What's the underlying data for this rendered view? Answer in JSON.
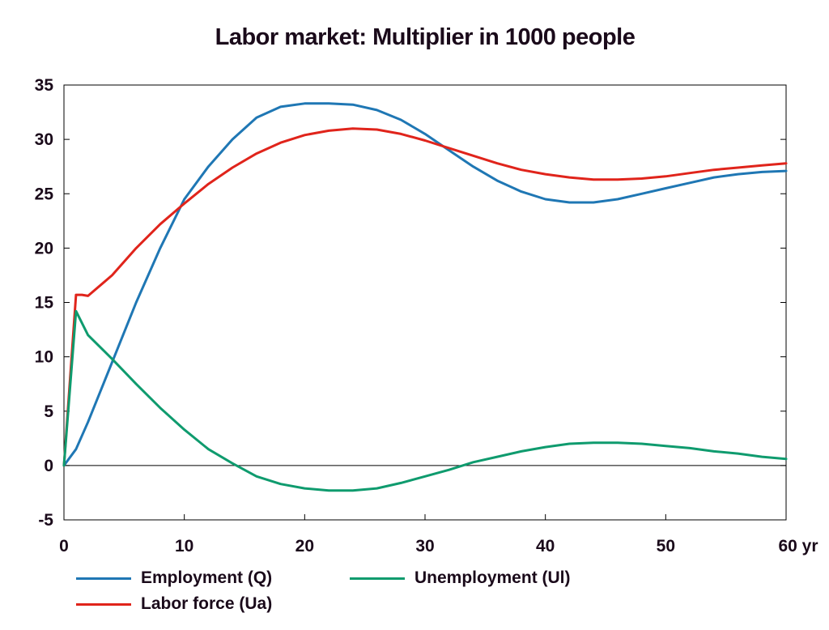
{
  "chart_data": {
    "type": "line",
    "title": "Labor market: Multiplier in 1000 people",
    "xlabel": "",
    "ylabel": "",
    "x_unit": "yr",
    "xlim": [
      0,
      60
    ],
    "ylim": [
      -5,
      35
    ],
    "x_ticks": [
      0,
      10,
      20,
      30,
      40,
      50,
      60
    ],
    "y_ticks": [
      -5,
      0,
      5,
      10,
      15,
      20,
      25,
      30,
      35
    ],
    "grid": false,
    "zero_line": true,
    "legend_position": "bottom",
    "series": [
      {
        "name": "Employment (Q)",
        "color": "#1f77b4",
        "x": [
          0,
          1,
          2,
          4,
          6,
          8,
          10,
          12,
          14,
          16,
          18,
          20,
          22,
          24,
          26,
          28,
          30,
          32,
          34,
          36,
          38,
          40,
          42,
          44,
          46,
          48,
          50,
          52,
          54,
          56,
          58,
          60
        ],
        "y": [
          0,
          1.5,
          4,
          9.5,
          15,
          20,
          24.5,
          27.5,
          30,
          32,
          33,
          33.3,
          33.3,
          33.2,
          32.7,
          31.8,
          30.5,
          29,
          27.5,
          26.2,
          25.2,
          24.5,
          24.2,
          24.2,
          24.5,
          25,
          25.5,
          26,
          26.5,
          26.8,
          27.0,
          27.1
        ]
      },
      {
        "name": "Labor force (Ua)",
        "color": "#e0241b",
        "x": [
          0,
          1,
          1.5,
          2,
          4,
          6,
          8,
          10,
          12,
          14,
          16,
          18,
          20,
          22,
          24,
          26,
          28,
          30,
          32,
          34,
          36,
          38,
          40,
          42,
          44,
          46,
          48,
          50,
          52,
          54,
          56,
          58,
          60
        ],
        "y": [
          0,
          15.7,
          15.7,
          15.6,
          17.5,
          20,
          22.2,
          24.1,
          25.9,
          27.4,
          28.7,
          29.7,
          30.4,
          30.8,
          31.0,
          30.9,
          30.5,
          29.9,
          29.2,
          28.5,
          27.8,
          27.2,
          26.8,
          26.5,
          26.3,
          26.3,
          26.4,
          26.6,
          26.9,
          27.2,
          27.4,
          27.6,
          27.8
        ]
      },
      {
        "name": "Unemployment (Ul)",
        "color": "#0f9b6e",
        "x": [
          0,
          1,
          2,
          4,
          6,
          8,
          10,
          12,
          14,
          16,
          18,
          20,
          22,
          24,
          26,
          28,
          30,
          32,
          34,
          36,
          38,
          40,
          42,
          44,
          46,
          48,
          50,
          52,
          54,
          56,
          58,
          60
        ],
        "y": [
          0,
          14.2,
          12.0,
          9.8,
          7.5,
          5.3,
          3.3,
          1.5,
          0.2,
          -1.0,
          -1.7,
          -2.1,
          -2.3,
          -2.3,
          -2.1,
          -1.6,
          -1.0,
          -0.4,
          0.3,
          0.8,
          1.3,
          1.7,
          2.0,
          2.1,
          2.1,
          2.0,
          1.8,
          1.6,
          1.3,
          1.1,
          0.8,
          0.6
        ]
      }
    ]
  }
}
